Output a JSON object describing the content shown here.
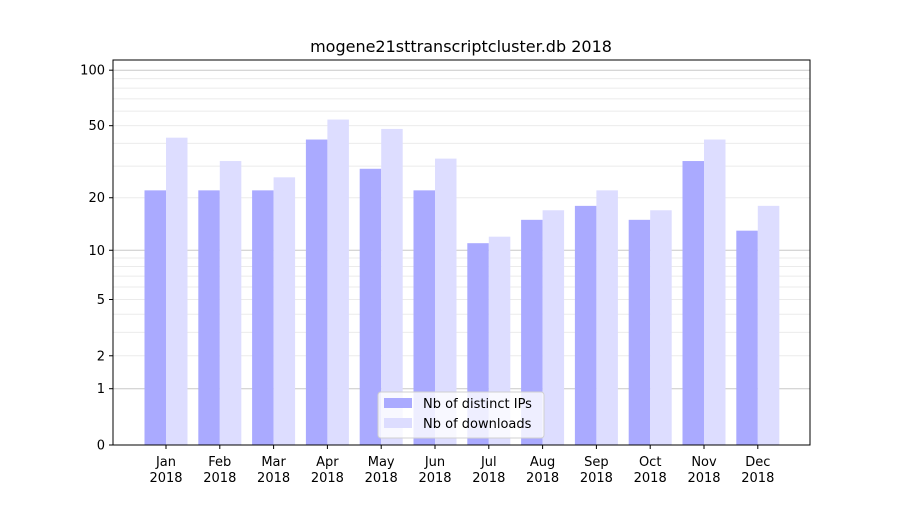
{
  "chart_data": {
    "type": "bar",
    "title": "mogene21sttranscriptcluster.db 2018",
    "xlabel": "",
    "ylabel": "",
    "yscale": "symlog",
    "ylim": [
      0,
      110
    ],
    "yticks": [
      0,
      1,
      2,
      5,
      10,
      20,
      50,
      100
    ],
    "grid": true,
    "legend_position": "lower-center",
    "categories": [
      "Jan\n2018",
      "Feb\n2018",
      "Mar\n2018",
      "Apr\n2018",
      "May\n2018",
      "Jun\n2018",
      "Jul\n2018",
      "Aug\n2018",
      "Sep\n2018",
      "Oct\n2018",
      "Nov\n2018",
      "Dec\n2018"
    ],
    "series": [
      {
        "name": "Nb of distinct IPs",
        "color": "#aaaaff",
        "values": [
          22,
          22,
          22,
          42,
          29,
          22,
          11,
          15,
          18,
          15,
          32,
          13
        ]
      },
      {
        "name": "Nb of downloads",
        "color": "#ddddff",
        "values": [
          43,
          32,
          26,
          54,
          48,
          33,
          12,
          17,
          22,
          17,
          42,
          18
        ]
      }
    ]
  }
}
